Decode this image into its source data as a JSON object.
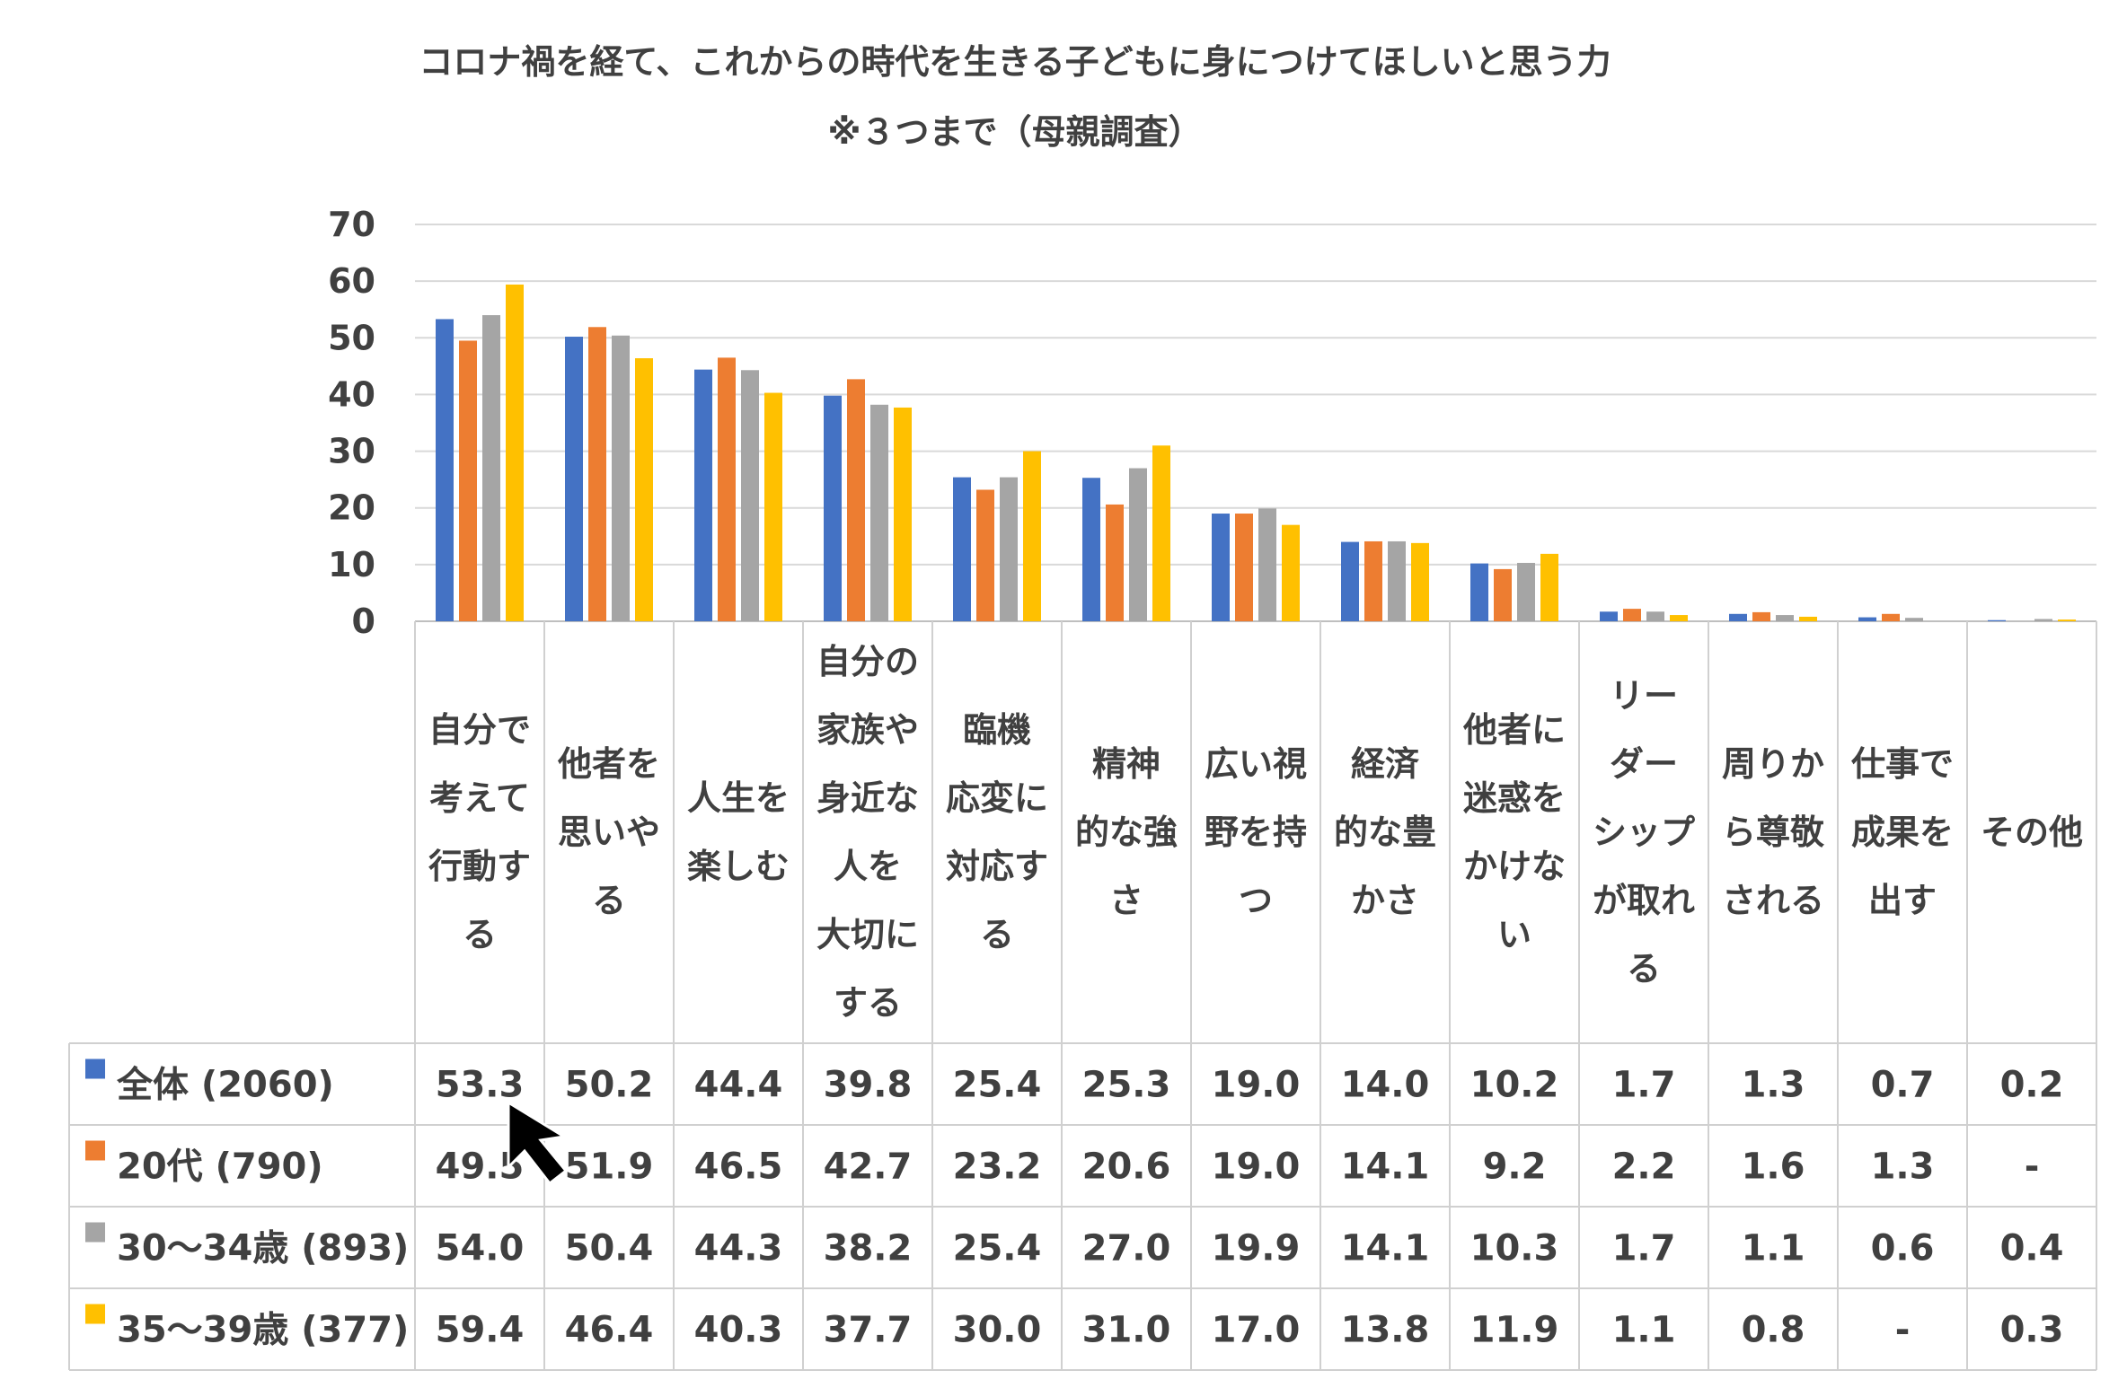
{
  "chart_data": {
    "type": "bar",
    "title": "コロナ禍を経て、これからの時代を生きる子どもに身につけてほしいと思う力",
    "subtitle": "※３つまで（母親調査）",
    "xlabel": "",
    "ylabel": "",
    "ylim": [
      0,
      70
    ],
    "yticks": [
      "0",
      "10",
      "20",
      "30",
      "40",
      "50",
      "60",
      "70"
    ],
    "grid": true,
    "legend": "table-left",
    "categories": [
      [
        "自分で",
        "考えて",
        "行動す",
        "る"
      ],
      [
        "他者を",
        "思いや",
        "る"
      ],
      [
        "人生を",
        "楽しむ"
      ],
      [
        "自分の",
        "家族や",
        "身近な",
        "人を",
        "大切に",
        "する"
      ],
      [
        "臨機",
        "応変に",
        "対応す",
        "る"
      ],
      [
        "精神",
        "的な強",
        "さ"
      ],
      [
        "広い視",
        "野を持",
        "つ"
      ],
      [
        "経済",
        "的な豊",
        "かさ"
      ],
      [
        "他者に",
        "迷惑を",
        "かけな",
        "い"
      ],
      [
        "リー",
        "ダー",
        "シップ",
        "が取れ",
        "る"
      ],
      [
        "周りか",
        "ら尊敬",
        "される"
      ],
      [
        "仕事で",
        "成果を",
        "出す"
      ],
      [
        "その他"
      ]
    ],
    "series": [
      {
        "name": "全体 (2060)",
        "color": "#4472C4",
        "values": [
          53.3,
          50.2,
          44.4,
          39.8,
          25.4,
          25.3,
          19.0,
          14.0,
          10.2,
          1.7,
          1.3,
          0.7,
          0.2
        ],
        "labels": [
          "53.3",
          "50.2",
          "44.4",
          "39.8",
          "25.4",
          "25.3",
          "19.0",
          "14.0",
          "10.2",
          "1.7",
          "1.3",
          "0.7",
          "0.2"
        ]
      },
      {
        "name": "20代 (790)",
        "color": "#ED7D31",
        "values": [
          49.5,
          51.9,
          46.5,
          42.7,
          23.2,
          20.6,
          19.0,
          14.1,
          9.2,
          2.2,
          1.6,
          1.3,
          null
        ],
        "labels": [
          "49.5",
          "51.9",
          "46.5",
          "42.7",
          "23.2",
          "20.6",
          "19.0",
          "14.1",
          "9.2",
          "2.2",
          "1.6",
          "1.3",
          "-"
        ]
      },
      {
        "name": "30～34歳 (893)",
        "color": "#A5A5A5",
        "values": [
          54.0,
          50.4,
          44.3,
          38.2,
          25.4,
          27.0,
          19.9,
          14.1,
          10.3,
          1.7,
          1.1,
          0.6,
          0.4
        ],
        "labels": [
          "54.0",
          "50.4",
          "44.3",
          "38.2",
          "25.4",
          "27.0",
          "19.9",
          "14.1",
          "10.3",
          "1.7",
          "1.1",
          "0.6",
          "0.4"
        ]
      },
      {
        "name": "35～39歳 (377)",
        "color": "#FFC000",
        "values": [
          59.4,
          46.4,
          40.3,
          37.7,
          30.0,
          31.0,
          17.0,
          13.8,
          11.9,
          1.1,
          0.8,
          null,
          0.3
        ],
        "labels": [
          "59.4",
          "46.4",
          "40.3",
          "37.7",
          "30.0",
          "31.0",
          "17.0",
          "13.8",
          "11.9",
          "1.1",
          "0.8",
          "-",
          "0.3"
        ]
      }
    ]
  }
}
